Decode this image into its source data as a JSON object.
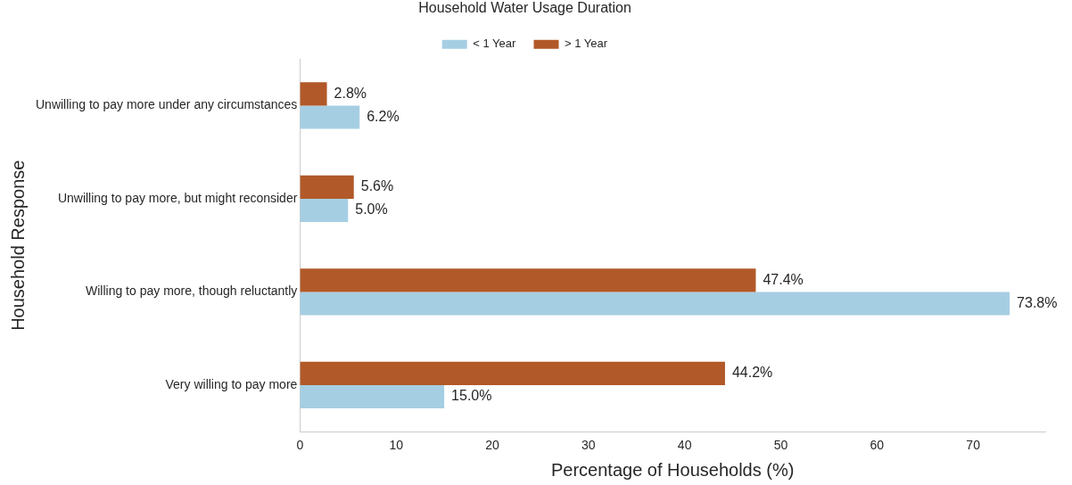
{
  "chart_data": {
    "type": "bar",
    "orientation": "horizontal",
    "categories": [
      "Unwilling to pay more under any circumstances",
      "Unwilling to pay more, but might reconsider",
      "Willing to pay more, though reluctantly",
      "Very willing to pay more"
    ],
    "series": [
      {
        "name": "< 1 Year",
        "color": "#a6cee3",
        "values": [
          6.2,
          5.0,
          73.8,
          15.0
        ],
        "value_labels": [
          "6.2%",
          "5.0%",
          "73.8%",
          "15.0%"
        ]
      },
      {
        "name": "> 1 Year",
        "color": "#b15928",
        "values": [
          2.8,
          5.6,
          47.4,
          44.2
        ],
        "value_labels": [
          "2.8%",
          "5.6%",
          "47.4%",
          "44.2%"
        ]
      }
    ],
    "xlabel": "Percentage of Households (%)",
    "ylabel": "Household Response",
    "legend_title": "Household Water Usage Duration",
    "xlim": [
      0,
      77.5
    ],
    "xticks": [
      0,
      10,
      20,
      30,
      40,
      50,
      60,
      70
    ],
    "grid": false,
    "legend": "top"
  }
}
